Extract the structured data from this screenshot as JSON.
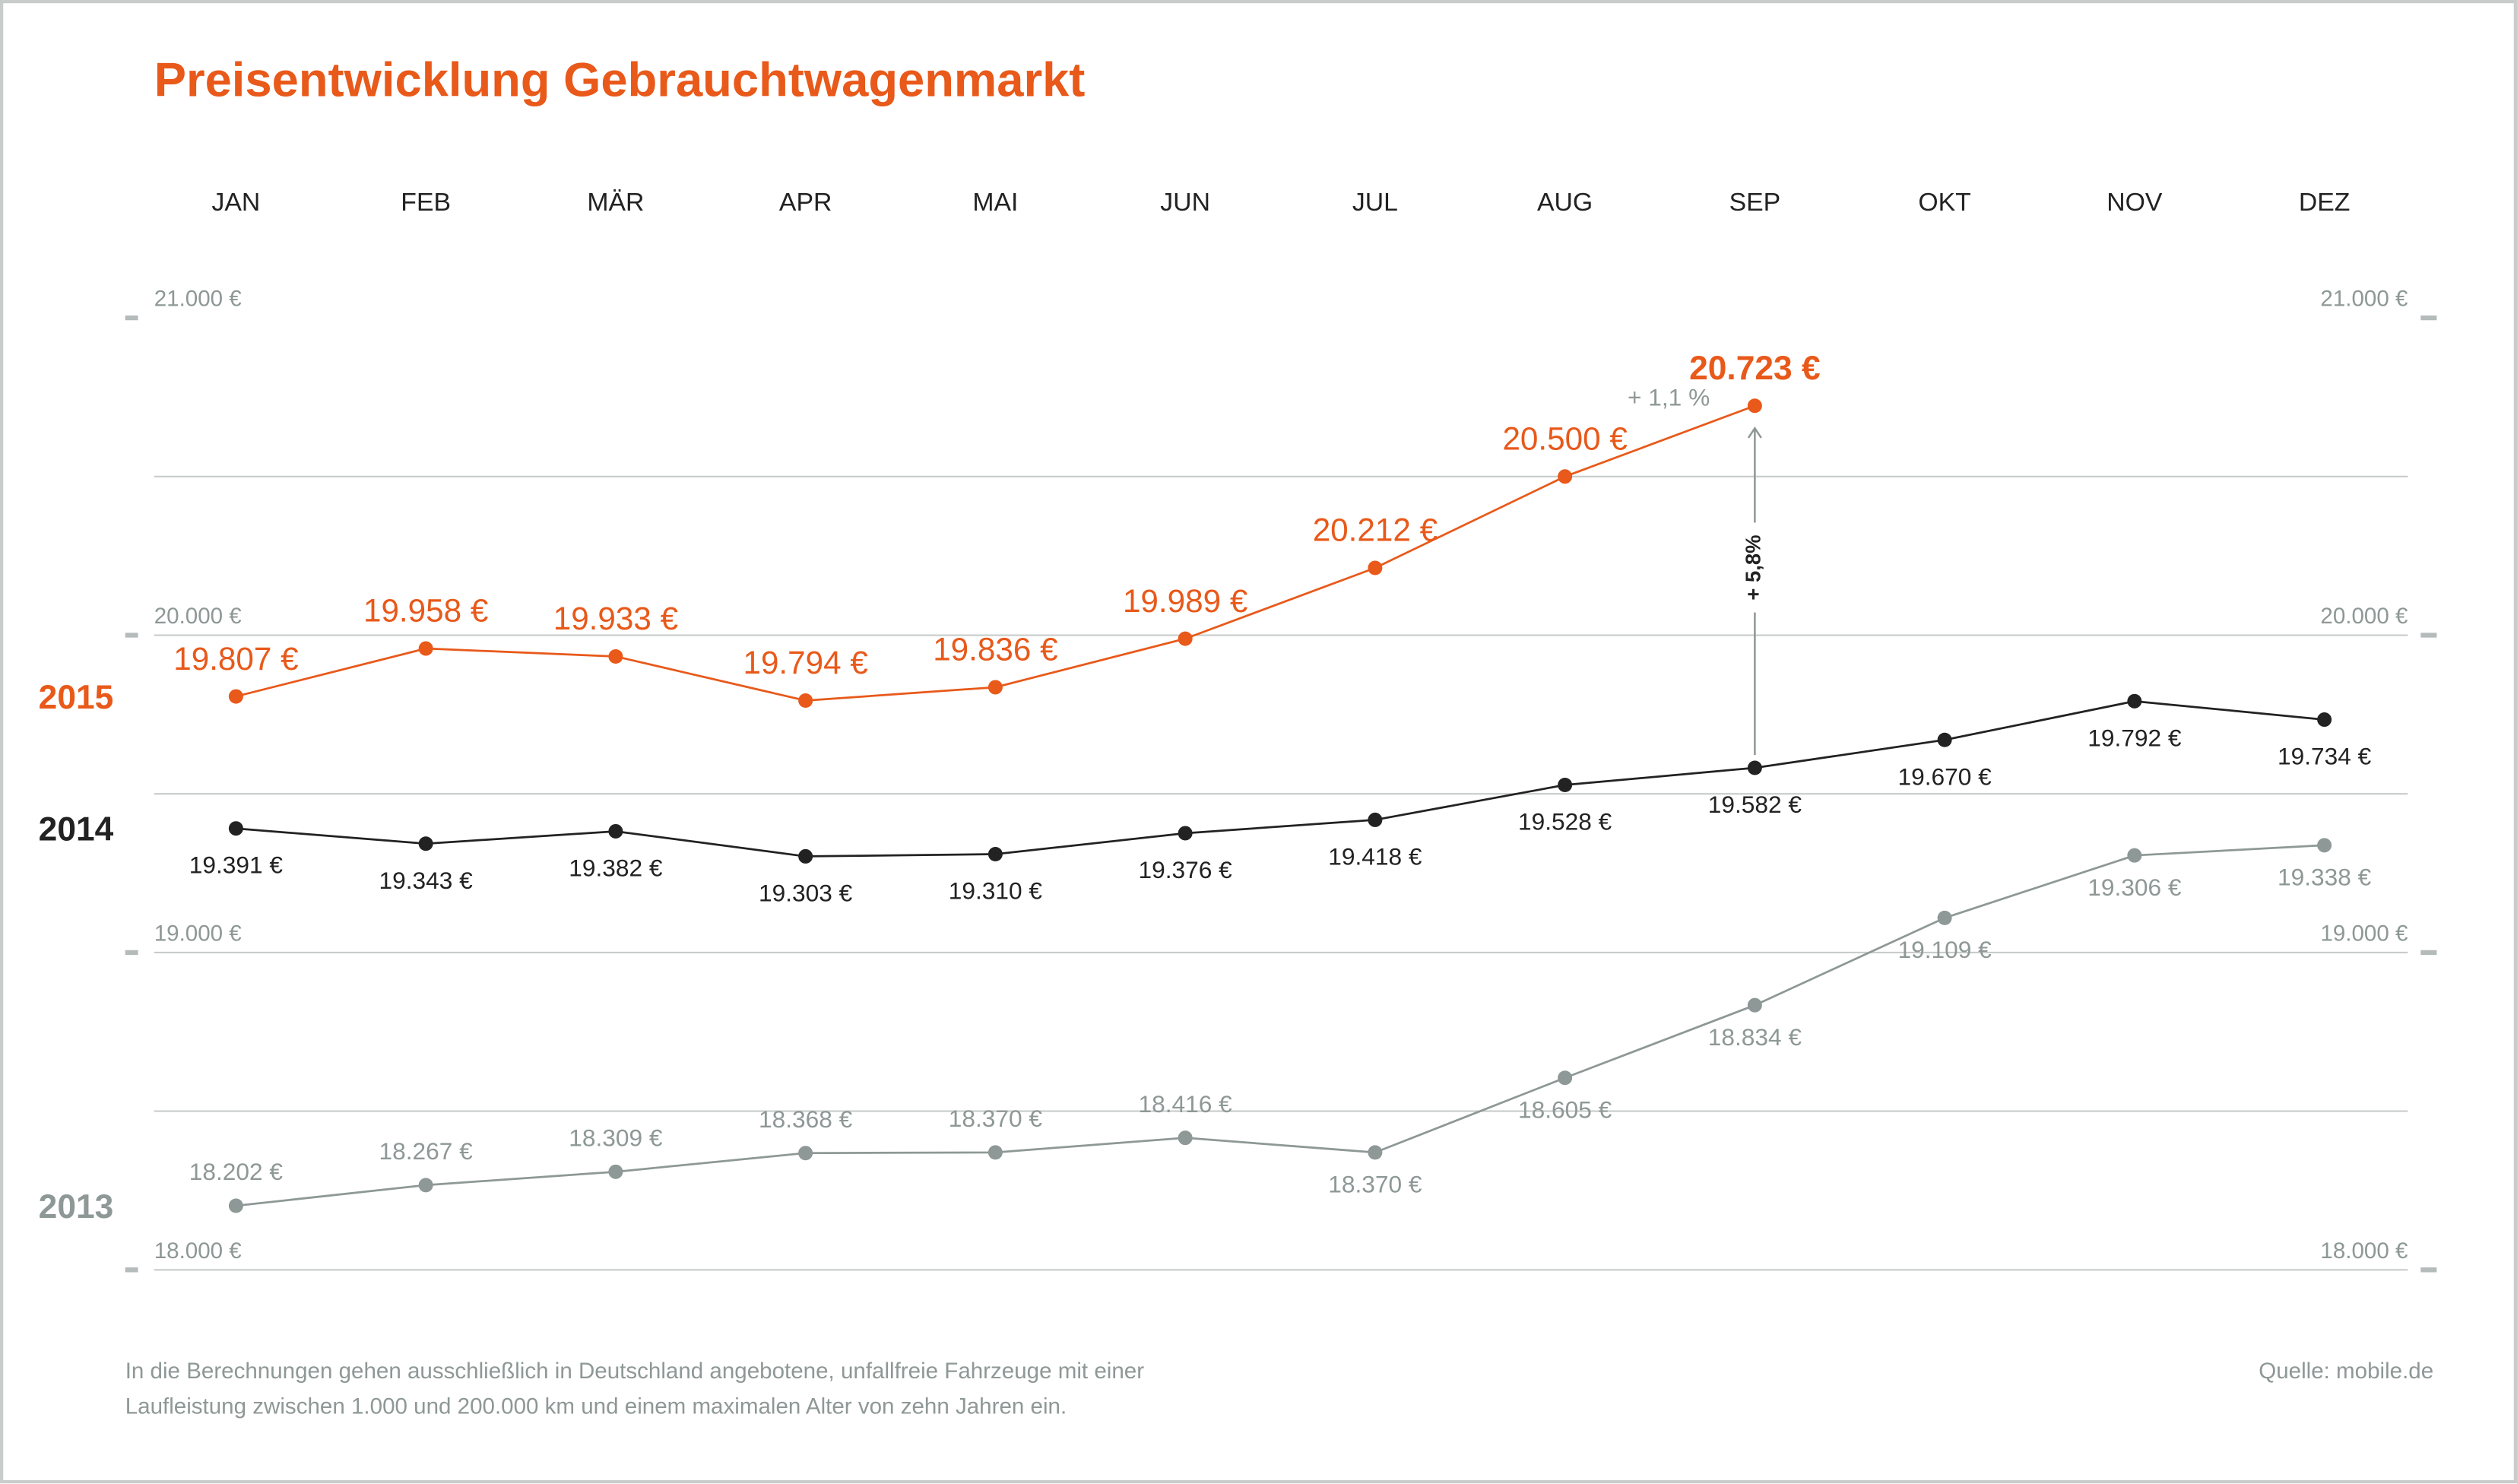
{
  "chart_data": {
    "type": "line",
    "title": "Preisentwicklung Gebrauchtwagenmarkt",
    "categories": [
      "JAN",
      "FEB",
      "MÄR",
      "APR",
      "MAI",
      "JUN",
      "JUL",
      "AUG",
      "SEP",
      "OKT",
      "NOV",
      "DEZ"
    ],
    "series": [
      {
        "name": "2015",
        "color": "#e8591a",
        "values": [
          19807,
          19958,
          19933,
          19794,
          19836,
          19989,
          20212,
          20500,
          20723,
          null,
          null,
          null
        ],
        "value_labels": [
          "19.807 €",
          "19.958 €",
          "19.933 €",
          "19.794 €",
          "19.836 €",
          "19.989 €",
          "20.212 €",
          "20.500 €",
          "20.723 €",
          null,
          null,
          null
        ]
      },
      {
        "name": "2014",
        "color": "#222222",
        "values": [
          19391,
          19343,
          19382,
          19303,
          19310,
          19376,
          19418,
          19528,
          19582,
          19670,
          19792,
          19734
        ],
        "value_labels": [
          "19.391 €",
          "19.343 €",
          "19.382 €",
          "19.303 €",
          "19.310 €",
          "19.376 €",
          "19.418 €",
          "19.528 €",
          "19.582 €",
          "19.670 €",
          "19.792 €",
          "19.734 €"
        ]
      },
      {
        "name": "2013",
        "color": "#8e9896",
        "values": [
          18202,
          18267,
          18309,
          18368,
          18370,
          18416,
          18370,
          18605,
          18834,
          19109,
          19306,
          19338
        ],
        "value_labels": [
          "18.202 €",
          "18.267 €",
          "18.309 €",
          "18.368 €",
          "18.370 €",
          "18.416 €",
          "18.370 €",
          "18.605 €",
          "18.834 €",
          "19.109 €",
          "19.306 €",
          "19.338 €"
        ]
      }
    ],
    "ylim": [
      18000,
      21000
    ],
    "yticks": [
      {
        "value": 18000,
        "label": "18.000 €"
      },
      {
        "value": 19000,
        "label": "19.000 €"
      },
      {
        "value": 20000,
        "label": "20.000 €"
      },
      {
        "value": 21000,
        "label": "21.000 €"
      }
    ],
    "minor_gridlines": [
      18500,
      19500,
      20500
    ],
    "grid": true,
    "annotations": [
      "+ 1,1 %",
      "+ 5,8%"
    ],
    "note": [
      "In die Berechnungen gehen ausschließlich in Deutschland angebotene, unfallfreie Fahrzeuge mit einer",
      "Laufleistung zwischen 1.000 und 200.000 km und einem maximalen Alter von zehn Jahren ein."
    ],
    "source": "Quelle: mobile.de"
  }
}
